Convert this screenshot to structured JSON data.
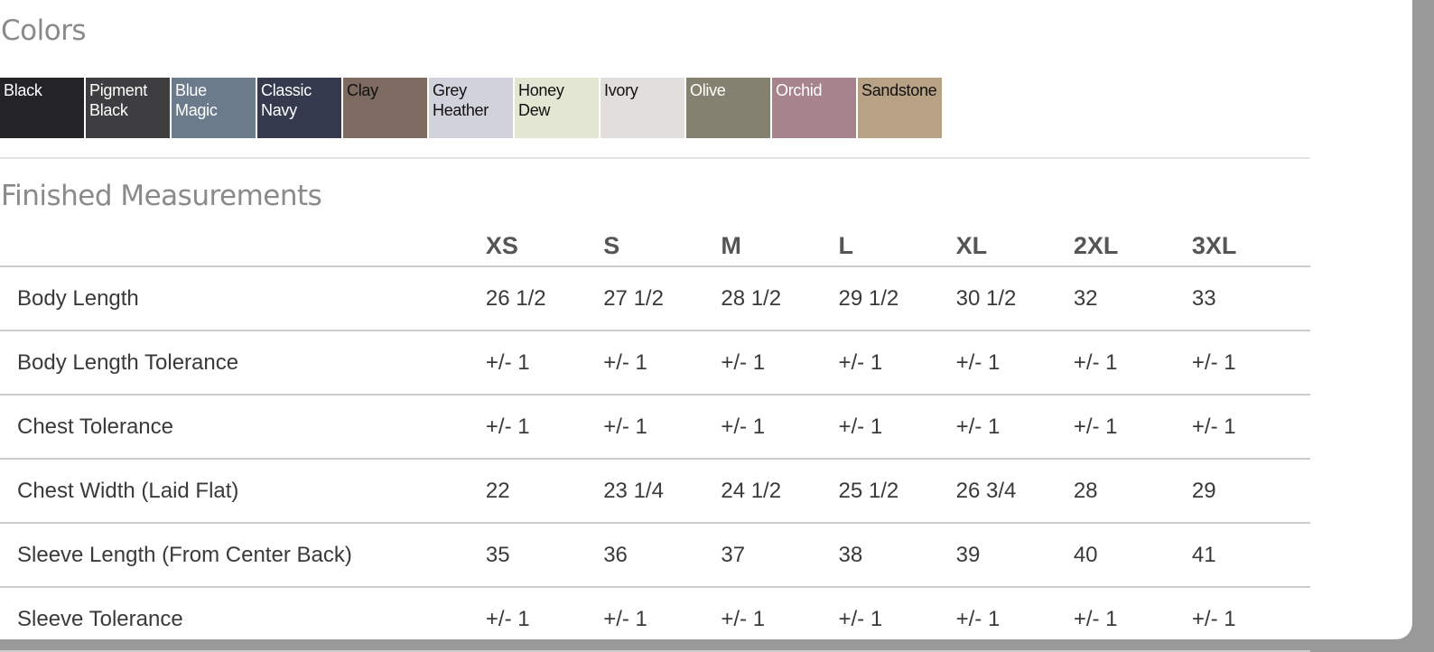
{
  "colors_title": "Colors",
  "swatches": [
    {
      "name": "Black",
      "color": "#242428",
      "text": "#fff"
    },
    {
      "name": "Pigment Black",
      "color": "#3e3e40",
      "text": "#fff"
    },
    {
      "name": "Blue Magic",
      "color": "#6b7b8c",
      "text": "#fff"
    },
    {
      "name": "Classic Navy",
      "color": "#363a4f",
      "text": "#fff"
    },
    {
      "name": "Clay",
      "color": "#7d6a60",
      "text": "#111"
    },
    {
      "name": "Grey Heather",
      "color": "#d2d2dc",
      "text": "#111"
    },
    {
      "name": "Honey Dew",
      "color": "#e2e6d2",
      "text": "#111"
    },
    {
      "name": "Ivory",
      "color": "#e2dedb",
      "text": "#111"
    },
    {
      "name": "Olive",
      "color": "#858170",
      "text": "#fff"
    },
    {
      "name": "Orchid",
      "color": "#a6838d",
      "text": "#fff"
    },
    {
      "name": "Sandstone",
      "color": "#b8a286",
      "text": "#111"
    }
  ],
  "measurements_title": "Finished Measurements",
  "sizes": [
    "XS",
    "S",
    "M",
    "L",
    "XL",
    "2XL",
    "3XL"
  ],
  "rows": [
    {
      "label": "Body Length",
      "values": [
        "26 1/2",
        "27 1/2",
        "28 1/2",
        "29 1/2",
        "30 1/2",
        "32",
        "33"
      ]
    },
    {
      "label": "Body Length Tolerance",
      "values": [
        "+/- 1",
        "+/- 1",
        "+/- 1",
        "+/- 1",
        "+/- 1",
        "+/- 1",
        "+/- 1"
      ]
    },
    {
      "label": "Chest Tolerance",
      "values": [
        "+/- 1",
        "+/- 1",
        "+/- 1",
        "+/- 1",
        "+/- 1",
        "+/- 1",
        "+/- 1"
      ]
    },
    {
      "label": "Chest Width (Laid Flat)",
      "values": [
        "22",
        "23 1/4",
        "24 1/2",
        "25 1/2",
        "26 3/4",
        "28",
        "29"
      ]
    },
    {
      "label": "Sleeve Length (From Center Back)",
      "values": [
        "35",
        "36",
        "37",
        "38",
        "39",
        "40",
        "41"
      ]
    },
    {
      "label": "Sleeve Tolerance",
      "values": [
        "+/- 1",
        "+/- 1",
        "+/- 1",
        "+/- 1",
        "+/- 1",
        "+/- 1",
        "+/- 1"
      ]
    }
  ]
}
